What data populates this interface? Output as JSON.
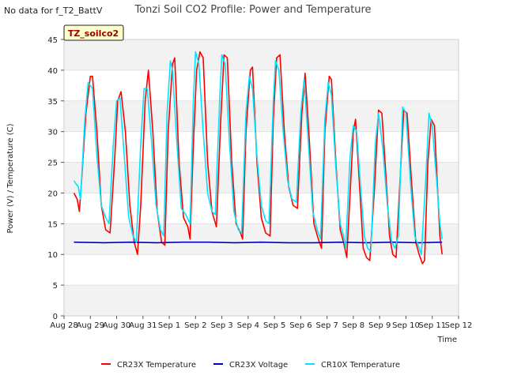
{
  "no_data_note": "No data for f_T2_BattV",
  "chart_data": {
    "type": "line",
    "title": "Tonzi Soil CO2 Profile: Power and Temperature",
    "xlabel": "Time",
    "ylabel": "Power (V) / Temperature (C)",
    "ylim": [
      0,
      45
    ],
    "yticks": [
      0,
      5,
      10,
      15,
      20,
      25,
      30,
      35,
      40,
      45
    ],
    "xlim": [
      "2024-08-28",
      "2024-09-12"
    ],
    "xticks": [
      "Aug 28",
      "Aug 29",
      "Aug 30",
      "Aug 31",
      "Sep 1",
      "Sep 2",
      "Sep 3",
      "Sep 4",
      "Sep 5",
      "Sep 6",
      "Sep 7",
      "Sep 8",
      "Sep 9",
      "Sep 10",
      "Sep 11",
      "Sep 12"
    ],
    "grid": true,
    "legend_position": "bottom",
    "site_label": "TZ_soilco2",
    "series": [
      {
        "name": "CR23X Temperature",
        "color": "#ff0000",
        "points": [
          [
            "2024-08-28 09:00",
            20.0
          ],
          [
            "2024-08-28 12:00",
            19.0
          ],
          [
            "2024-08-28 14:00",
            17.0
          ],
          [
            "2024-08-28 16:00",
            22.0
          ],
          [
            "2024-08-28 20:00",
            33.0
          ],
          [
            "2024-08-29 00:00",
            39.0
          ],
          [
            "2024-08-29 02:00",
            39.0
          ],
          [
            "2024-08-29 06:00",
            30.0
          ],
          [
            "2024-08-29 10:00",
            18.0
          ],
          [
            "2024-08-29 14:00",
            14.0
          ],
          [
            "2024-08-29 18:00",
            13.5
          ],
          [
            "2024-08-29 22:00",
            25.0
          ],
          [
            "2024-08-30 01:00",
            35.0
          ],
          [
            "2024-08-30 04:00",
            36.5
          ],
          [
            "2024-08-30 08:00",
            30.0
          ],
          [
            "2024-08-30 12:00",
            18.0
          ],
          [
            "2024-08-30 16:00",
            12.0
          ],
          [
            "2024-08-30 19:00",
            10.0
          ],
          [
            "2024-08-30 22:00",
            18.0
          ],
          [
            "2024-08-31 02:00",
            35.0
          ],
          [
            "2024-08-31 05:00",
            40.0
          ],
          [
            "2024-08-31 09:00",
            30.0
          ],
          [
            "2024-08-31 13:00",
            17.0
          ],
          [
            "2024-08-31 17:00",
            12.0
          ],
          [
            "2024-08-31 20:00",
            11.5
          ],
          [
            "2024-08-31 23:00",
            30.0
          ],
          [
            "2024-09-01 03:00",
            41.0
          ],
          [
            "2024-09-01 05:00",
            42.0
          ],
          [
            "2024-09-01 09:00",
            25.0
          ],
          [
            "2024-09-01 13:00",
            16.0
          ],
          [
            "2024-09-01 17:00",
            14.5
          ],
          [
            "2024-09-01 19:00",
            12.5
          ],
          [
            "2024-09-01 22:00",
            28.0
          ],
          [
            "2024-09-02 01:00",
            40.0
          ],
          [
            "2024-09-02 04:00",
            43.0
          ],
          [
            "2024-09-02 07:00",
            42.0
          ],
          [
            "2024-09-02 11:00",
            25.0
          ],
          [
            "2024-09-02 15:00",
            17.0
          ],
          [
            "2024-09-02 19:00",
            14.5
          ],
          [
            "2024-09-02 23:00",
            32.0
          ],
          [
            "2024-09-03 02:00",
            42.5
          ],
          [
            "2024-09-03 05:00",
            42.0
          ],
          [
            "2024-09-03 09:00",
            25.0
          ],
          [
            "2024-09-03 13:00",
            15.0
          ],
          [
            "2024-09-03 17:00",
            13.5
          ],
          [
            "2024-09-03 19:00",
            12.5
          ],
          [
            "2024-09-03 22:00",
            30.0
          ],
          [
            "2024-09-04 02:00",
            40.0
          ],
          [
            "2024-09-04 04:00",
            40.5
          ],
          [
            "2024-09-04 08:00",
            25.0
          ],
          [
            "2024-09-04 12:00",
            16.0
          ],
          [
            "2024-09-04 16:00",
            13.5
          ],
          [
            "2024-09-04 20:00",
            13.0
          ],
          [
            "2024-09-04 23:00",
            32.0
          ],
          [
            "2024-09-05 02:00",
            42.0
          ],
          [
            "2024-09-05 05:00",
            42.5
          ],
          [
            "2024-09-05 09:00",
            30.0
          ],
          [
            "2024-09-05 13:00",
            21.0
          ],
          [
            "2024-09-05 17:00",
            18.0
          ],
          [
            "2024-09-05 21:00",
            17.5
          ],
          [
            "2024-09-06 01:00",
            33.0
          ],
          [
            "2024-09-06 04:00",
            39.5
          ],
          [
            "2024-09-06 08:00",
            28.0
          ],
          [
            "2024-09-06 12:00",
            15.0
          ],
          [
            "2024-09-06 16:00",
            12.5
          ],
          [
            "2024-09-06 19:00",
            11.0
          ],
          [
            "2024-09-06 22:00",
            30.0
          ],
          [
            "2024-09-07 02:00",
            39.0
          ],
          [
            "2024-09-07 04:00",
            38.5
          ],
          [
            "2024-09-07 08:00",
            25.0
          ],
          [
            "2024-09-07 12:00",
            14.0
          ],
          [
            "2024-09-07 15:00",
            12.0
          ],
          [
            "2024-09-07 18:00",
            9.5
          ],
          [
            "2024-09-07 21:00",
            20.0
          ],
          [
            "2024-09-08 00:00",
            30.0
          ],
          [
            "2024-09-08 02:00",
            32.0
          ],
          [
            "2024-09-08 06:00",
            20.0
          ],
          [
            "2024-09-08 09:00",
            11.0
          ],
          [
            "2024-09-08 12:00",
            9.5
          ],
          [
            "2024-09-08 15:00",
            9.0
          ],
          [
            "2024-09-08 19:00",
            20.0
          ],
          [
            "2024-09-08 23:00",
            33.5
          ],
          [
            "2024-09-09 02:00",
            33.0
          ],
          [
            "2024-09-09 06:00",
            22.0
          ],
          [
            "2024-09-09 09:00",
            13.0
          ],
          [
            "2024-09-09 12:00",
            10.0
          ],
          [
            "2024-09-09 15:00",
            9.5
          ],
          [
            "2024-09-09 18:00",
            20.0
          ],
          [
            "2024-09-09 22:00",
            33.5
          ],
          [
            "2024-09-10 01:00",
            33.0
          ],
          [
            "2024-09-10 05:00",
            22.0
          ],
          [
            "2024-09-10 09:00",
            12.0
          ],
          [
            "2024-09-10 12:00",
            10.0
          ],
          [
            "2024-09-10 15:00",
            8.5
          ],
          [
            "2024-09-10 17:00",
            9.0
          ],
          [
            "2024-09-10 20:00",
            25.0
          ],
          [
            "2024-09-10 23:00",
            32.0
          ],
          [
            "2024-09-11 02:00",
            31.0
          ],
          [
            "2024-09-11 05:00",
            20.0
          ],
          [
            "2024-09-11 07:00",
            13.0
          ],
          [
            "2024-09-11 09:00",
            10.0
          ]
        ]
      },
      {
        "name": "CR23X Voltage",
        "color": "#0000bb",
        "points": [
          [
            "2024-08-28 09:00",
            12.0
          ],
          [
            "2024-08-29 12:00",
            11.9
          ],
          [
            "2024-08-30 12:00",
            12.0
          ],
          [
            "2024-08-31 12:00",
            11.9
          ],
          [
            "2024-09-01 12:00",
            12.0
          ],
          [
            "2024-09-02 12:00",
            12.0
          ],
          [
            "2024-09-03 12:00",
            11.9
          ],
          [
            "2024-09-04 12:00",
            12.0
          ],
          [
            "2024-09-05 12:00",
            11.9
          ],
          [
            "2024-09-06 12:00",
            11.9
          ],
          [
            "2024-09-07 12:00",
            12.0
          ],
          [
            "2024-09-08 12:00",
            11.9
          ],
          [
            "2024-09-09 12:00",
            12.0
          ],
          [
            "2024-09-10 12:00",
            11.9
          ],
          [
            "2024-09-11 09:00",
            12.0
          ]
        ]
      },
      {
        "name": "CR10X Temperature",
        "color": "#00e5ff",
        "points": [
          [
            "2024-08-28 09:00",
            22.0
          ],
          [
            "2024-08-28 13:00",
            21.0
          ],
          [
            "2024-08-28 15:00",
            19.0
          ],
          [
            "2024-08-28 19:00",
            32.0
          ],
          [
            "2024-08-28 22:00",
            38.0
          ],
          [
            "2024-08-29 02:00",
            37.0
          ],
          [
            "2024-08-29 06:00",
            26.0
          ],
          [
            "2024-08-29 10:00",
            18.0
          ],
          [
            "2024-08-29 14:00",
            16.0
          ],
          [
            "2024-08-29 17:00",
            15.0
          ],
          [
            "2024-08-29 21:00",
            28.0
          ],
          [
            "2024-08-30 00:00",
            35.0
          ],
          [
            "2024-08-30 03:00",
            35.5
          ],
          [
            "2024-08-30 07:00",
            26.0
          ],
          [
            "2024-08-30 11:00",
            16.0
          ],
          [
            "2024-08-30 15:00",
            13.0
          ],
          [
            "2024-08-30 18:00",
            12.0
          ],
          [
            "2024-08-30 22:00",
            28.0
          ],
          [
            "2024-08-31 01:00",
            37.0
          ],
          [
            "2024-08-31 04:00",
            37.0
          ],
          [
            "2024-08-31 08:00",
            28.0
          ],
          [
            "2024-08-31 12:00",
            18.0
          ],
          [
            "2024-08-31 16:00",
            14.0
          ],
          [
            "2024-08-31 19:00",
            13.0
          ],
          [
            "2024-08-31 22:00",
            33.0
          ],
          [
            "2024-09-01 01:00",
            41.5
          ],
          [
            "2024-09-01 03:00",
            40.0
          ],
          [
            "2024-09-01 07:00",
            28.0
          ],
          [
            "2024-09-01 11:00",
            17.5
          ],
          [
            "2024-09-01 15:00",
            16.5
          ],
          [
            "2024-09-01 19:00",
            15.0
          ],
          [
            "2024-09-01 22:00",
            35.0
          ],
          [
            "2024-09-02 00:00",
            43.0
          ],
          [
            "2024-09-02 03:00",
            41.0
          ],
          [
            "2024-09-02 07:00",
            30.0
          ],
          [
            "2024-09-02 11:00",
            20.0
          ],
          [
            "2024-09-02 15:00",
            17.0
          ],
          [
            "2024-09-02 18:00",
            16.5
          ],
          [
            "2024-09-02 22:00",
            35.0
          ],
          [
            "2024-09-03 00:00",
            42.5
          ],
          [
            "2024-09-03 03:00",
            41.0
          ],
          [
            "2024-09-03 07:00",
            28.0
          ],
          [
            "2024-09-03 11:00",
            17.0
          ],
          [
            "2024-09-03 15:00",
            14.0
          ],
          [
            "2024-09-03 18:00",
            13.5
          ],
          [
            "2024-09-03 22:00",
            33.0
          ],
          [
            "2024-09-04 01:00",
            39.0
          ],
          [
            "2024-09-04 04:00",
            37.0
          ],
          [
            "2024-09-04 08:00",
            26.0
          ],
          [
            "2024-09-04 12:00",
            18.0
          ],
          [
            "2024-09-04 16:00",
            15.5
          ],
          [
            "2024-09-04 19:00",
            15.0
          ],
          [
            "2024-09-04 23:00",
            35.0
          ],
          [
            "2024-09-05 01:00",
            41.5
          ],
          [
            "2024-09-05 04:00",
            40.0
          ],
          [
            "2024-09-05 08:00",
            30.0
          ],
          [
            "2024-09-05 12:00",
            22.0
          ],
          [
            "2024-09-05 16:00",
            19.0
          ],
          [
            "2024-09-05 20:00",
            18.5
          ],
          [
            "2024-09-06 00:00",
            33.0
          ],
          [
            "2024-09-06 03:00",
            38.5
          ],
          [
            "2024-09-06 07:00",
            28.0
          ],
          [
            "2024-09-06 11:00",
            17.0
          ],
          [
            "2024-09-06 15:00",
            14.0
          ],
          [
            "2024-09-06 18:00",
            12.5
          ],
          [
            "2024-09-06 22:00",
            32.0
          ],
          [
            "2024-09-07 01:00",
            38.0
          ],
          [
            "2024-09-07 04:00",
            36.0
          ],
          [
            "2024-09-07 08:00",
            24.0
          ],
          [
            "2024-09-07 12:00",
            15.0
          ],
          [
            "2024-09-07 15:00",
            13.0
          ],
          [
            "2024-09-07 17:00",
            11.0
          ],
          [
            "2024-09-07 21:00",
            26.0
          ],
          [
            "2024-09-08 00:00",
            31.0
          ],
          [
            "2024-09-08 03:00",
            30.0
          ],
          [
            "2024-09-08 07:00",
            20.0
          ],
          [
            "2024-09-08 10:00",
            13.0
          ],
          [
            "2024-09-08 13:00",
            11.0
          ],
          [
            "2024-09-08 16:00",
            10.5
          ],
          [
            "2024-09-08 20:00",
            28.0
          ],
          [
            "2024-09-08 23:00",
            33.0
          ],
          [
            "2024-09-09 03:00",
            27.0
          ],
          [
            "2024-09-09 07:00",
            18.0
          ],
          [
            "2024-09-09 11:00",
            12.0
          ],
          [
            "2024-09-09 14:00",
            11.0
          ],
          [
            "2024-09-09 17:00",
            13.0
          ],
          [
            "2024-09-09 21:00",
            34.0
          ],
          [
            "2024-09-10 00:00",
            33.0
          ],
          [
            "2024-09-10 04:00",
            22.0
          ],
          [
            "2024-09-10 08:00",
            13.0
          ],
          [
            "2024-09-10 12:00",
            11.0
          ],
          [
            "2024-09-10 14:00",
            10.0
          ],
          [
            "2024-09-10 18:00",
            22.0
          ],
          [
            "2024-09-10 21:00",
            33.0
          ],
          [
            "2024-09-11 00:00",
            31.0
          ],
          [
            "2024-09-11 04:00",
            22.0
          ],
          [
            "2024-09-11 07:00",
            15.0
          ],
          [
            "2024-09-11 09:00",
            12.5
          ]
        ]
      }
    ]
  }
}
